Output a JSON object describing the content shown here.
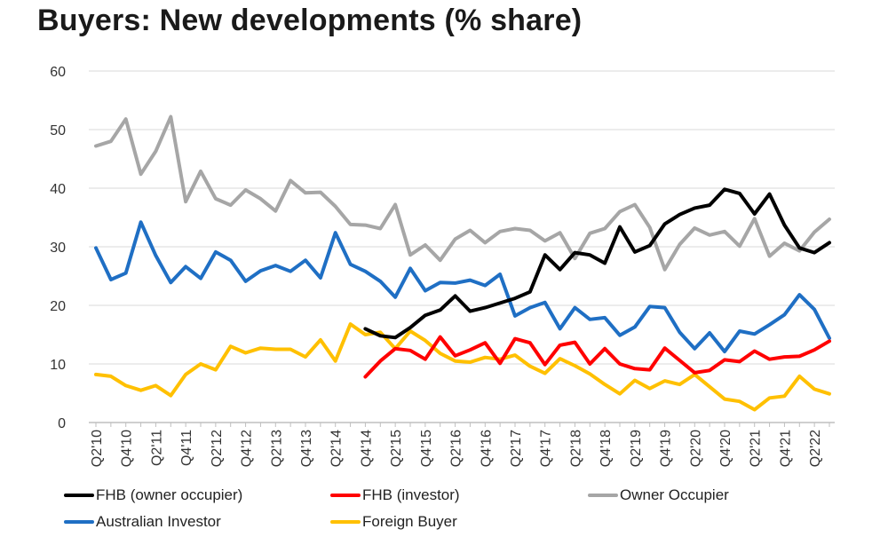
{
  "chart_data": {
    "type": "line",
    "title": "Buyers: New developments (% share)",
    "ylim": [
      0,
      60
    ],
    "yticks": [
      0,
      10,
      20,
      30,
      40,
      50,
      60
    ],
    "grid": "horizontal",
    "legend_position": "bottom",
    "x": [
      "Q2'10",
      "Q3'10",
      "Q4'10",
      "Q1'11",
      "Q2'11",
      "Q3'11",
      "Q4'11",
      "Q1'12",
      "Q2'12",
      "Q3'12",
      "Q4'12",
      "Q1'13",
      "Q2'13",
      "Q3'13",
      "Q4'13",
      "Q1'14",
      "Q2'14",
      "Q3'14",
      "Q4'14",
      "Q1'15",
      "Q2'15",
      "Q3'15",
      "Q4'15",
      "Q1'16",
      "Q2'16",
      "Q3'16",
      "Q4'16",
      "Q1'17",
      "Q2'17",
      "Q3'17",
      "Q4'17",
      "Q1'18",
      "Q2'18",
      "Q3'18",
      "Q4'18",
      "Q1'19",
      "Q2'19",
      "Q3'19",
      "Q4'19",
      "Q1'20",
      "Q2'20",
      "Q3'20",
      "Q4'20",
      "Q1'21",
      "Q2'21",
      "Q3'21",
      "Q4'21",
      "Q1'22",
      "Q2'22",
      "Q3'22"
    ],
    "xtick_labels": [
      "Q2'10",
      "Q4'10",
      "Q2'11",
      "Q4'11",
      "Q2'12",
      "Q4'12",
      "Q2'13",
      "Q4'13",
      "Q2'14",
      "Q4'14",
      "Q2'15",
      "Q4'15",
      "Q2'16",
      "Q4'16",
      "Q2'17",
      "Q4'17",
      "Q2'18",
      "Q4'18",
      "Q2'19",
      "Q4'19",
      "Q2'20",
      "Q4'20",
      "Q2'21",
      "Q4'21",
      "Q2'22"
    ],
    "series": [
      {
        "name": "FHB (owner occupier)",
        "color": "#000000",
        "values": [
          null,
          null,
          null,
          null,
          null,
          null,
          null,
          null,
          null,
          null,
          null,
          null,
          null,
          null,
          null,
          null,
          null,
          null,
          16,
          14.8,
          14.5,
          16.2,
          18.3,
          19.2,
          21.6,
          19,
          19.6,
          20.4,
          21.2,
          22.3,
          28.6,
          26.1,
          29,
          28.6,
          27.2,
          33.4,
          29.1,
          30.2,
          33.9,
          35.5,
          36.6,
          37.1,
          39.8,
          39.1,
          35.6,
          39,
          33.7,
          29.8,
          29,
          30.7
        ]
      },
      {
        "name": "FHB (investor)",
        "color": "#ff0000",
        "values": [
          null,
          null,
          null,
          null,
          null,
          null,
          null,
          null,
          null,
          null,
          null,
          null,
          null,
          null,
          null,
          null,
          null,
          null,
          7.8,
          10.5,
          12.6,
          12.3,
          10.8,
          14.6,
          11.4,
          12.4,
          13.6,
          10.1,
          14.3,
          13.6,
          9.9,
          13.2,
          13.7,
          10,
          12.6,
          10,
          9.2,
          9,
          12.7,
          10.6,
          8.5,
          8.9,
          10.7,
          10.4,
          12.2,
          10.8,
          11.2,
          11.3,
          12.4,
          13.9
        ]
      },
      {
        "name": "Owner Occupier",
        "color": "#a6a6a6",
        "values": [
          47.2,
          48,
          51.8,
          42.4,
          46.3,
          52.2,
          37.7,
          42.9,
          38.2,
          37.1,
          39.7,
          38.2,
          36.1,
          41.3,
          39.2,
          39.3,
          36.9,
          33.8,
          33.7,
          33.1,
          37.2,
          28.6,
          30.3,
          27.7,
          31.3,
          32.8,
          30.7,
          32.6,
          33.1,
          32.8,
          31,
          32.4,
          28,
          32.3,
          33.1,
          36,
          37.2,
          33.3,
          26.1,
          30.4,
          33.2,
          32,
          32.6,
          30.1,
          34.8,
          28.4,
          30.6,
          29.3,
          32.5,
          34.7
        ]
      },
      {
        "name": "Australian Investor",
        "color": "#1f6fc4",
        "values": [
          29.8,
          24.4,
          25.5,
          34.2,
          28.5,
          23.9,
          26.6,
          24.6,
          29.1,
          27.7,
          24.1,
          25.9,
          26.8,
          25.8,
          27.7,
          24.7,
          32.4,
          27,
          25.8,
          24.1,
          21.4,
          26.3,
          22.5,
          23.9,
          23.8,
          24.3,
          23.4,
          25.3,
          18.2,
          19.6,
          20.5,
          16,
          19.6,
          17.6,
          17.9,
          14.9,
          16.3,
          19.8,
          19.6,
          15.4,
          12.6,
          15.3,
          12.1,
          15.6,
          15.1,
          16.7,
          18.4,
          21.8,
          19.3,
          14.4
        ]
      },
      {
        "name": "Foreign Buyer",
        "color": "#ffc000",
        "values": [
          8.2,
          7.9,
          6.3,
          5.5,
          6.3,
          4.6,
          8.2,
          10,
          9,
          13,
          11.9,
          12.7,
          12.5,
          12.5,
          11.2,
          14.1,
          10.5,
          16.8,
          15,
          15.4,
          12.6,
          15.6,
          14,
          11.8,
          10.5,
          10.3,
          11.1,
          10.8,
          11.5,
          9.6,
          8.4,
          10.9,
          9.7,
          8.3,
          6.5,
          4.9,
          7.2,
          5.8,
          7.1,
          6.5,
          8.2,
          6.1,
          4,
          3.6,
          2.2,
          4.2,
          4.5,
          7.9,
          5.7,
          4.9
        ]
      }
    ]
  }
}
